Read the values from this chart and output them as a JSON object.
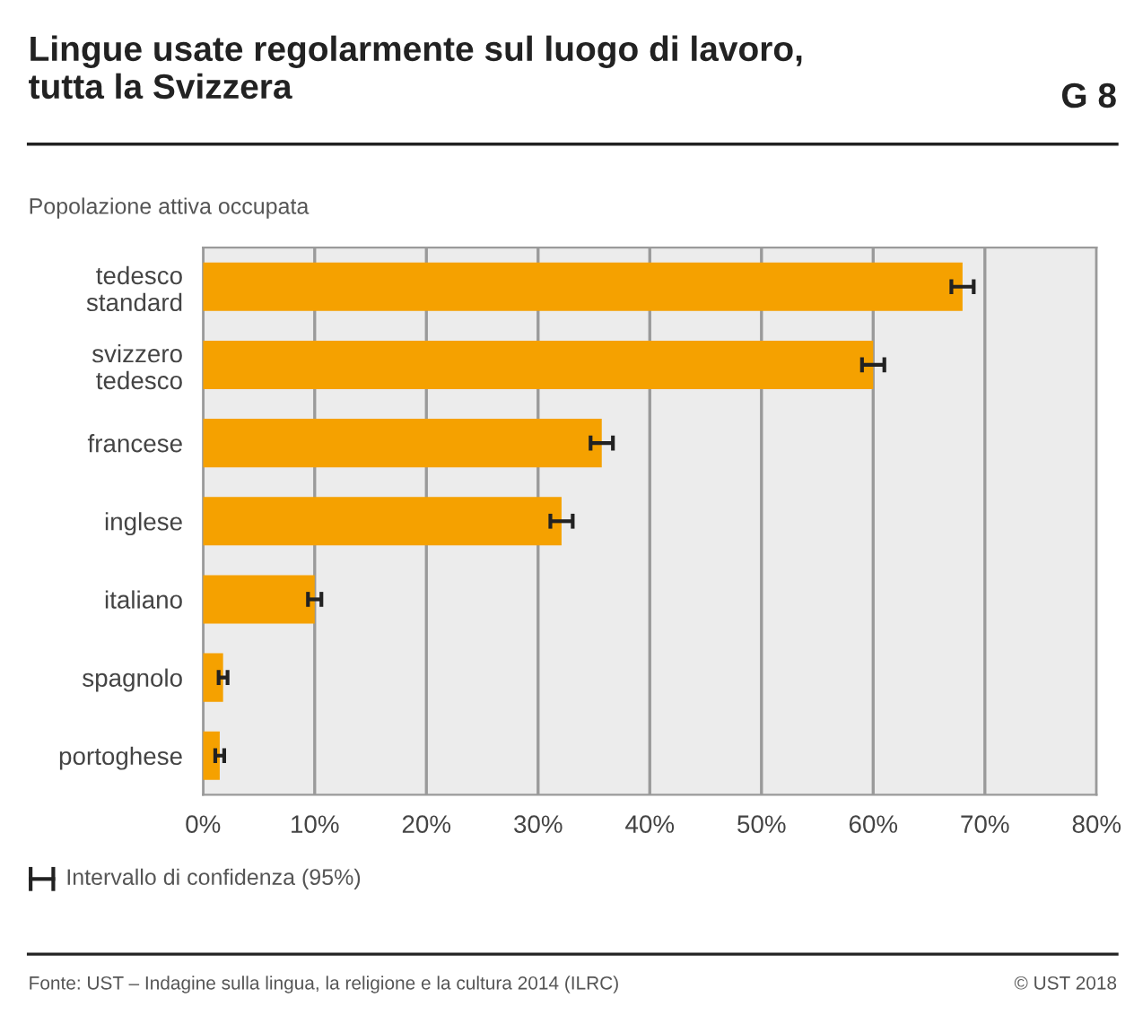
{
  "chart_data": {
    "type": "bar",
    "orientation": "horizontal",
    "title": "Lingue usate regolarmente sul luogo di lavoro,\ntutta la Svizzera",
    "subtitle": "Popolazione attiva occupata",
    "categories": [
      "tedesco\nstandard",
      "svizzero\ntedesco",
      "francese",
      "inglese",
      "italiano",
      "spagnolo",
      "portoghese"
    ],
    "values": [
      68,
      60,
      35.7,
      32.1,
      10,
      1.8,
      1.5
    ],
    "errors": [
      1,
      1,
      1,
      1,
      0.6,
      0.4,
      0.4
    ],
    "color": "#f5a100",
    "xlim": [
      0,
      80
    ],
    "xticks": [
      {
        "value": 0,
        "label": "0%"
      },
      {
        "value": 10,
        "label": "10%"
      },
      {
        "value": 20,
        "label": "20%"
      },
      {
        "value": 30,
        "label": "30%"
      },
      {
        "value": 40,
        "label": "40%"
      },
      {
        "value": 50,
        "label": "50%"
      },
      {
        "value": 60,
        "label": "60%"
      },
      {
        "value": 70,
        "label": "70%"
      },
      {
        "value": 80,
        "label": "80%"
      }
    ],
    "grid": "x",
    "annotations": [
      "G 8",
      "Intervallo di confidenza (95%)",
      "Fonte: UST – Indagine sulla lingua, la religione e la cultura 2014 (ILRC)",
      "© UST 2018"
    ]
  }
}
